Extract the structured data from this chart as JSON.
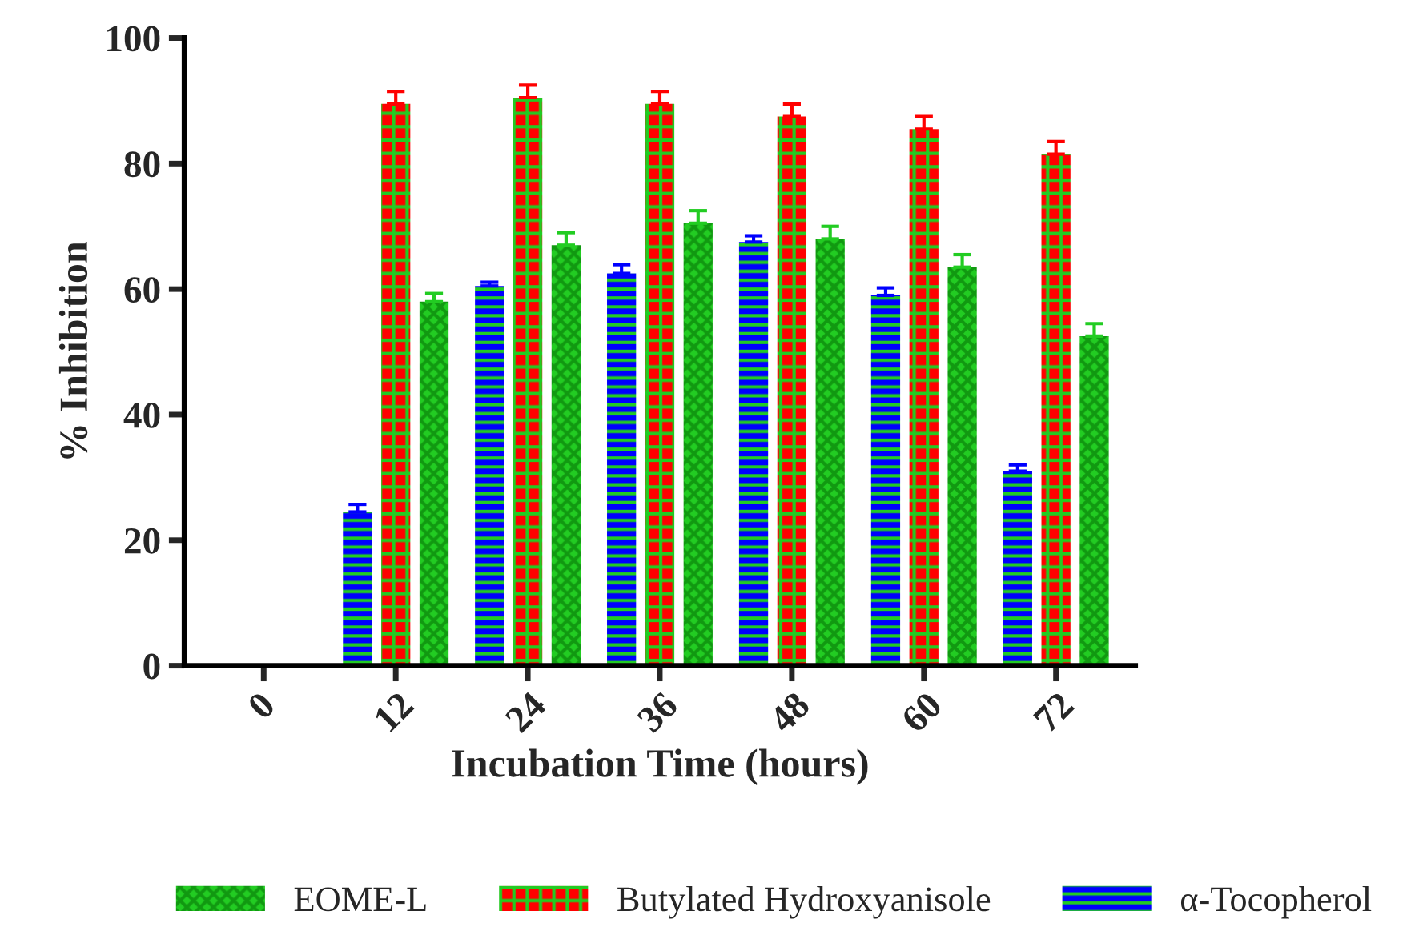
{
  "chart_data": {
    "type": "bar",
    "xlabel": "Incubation Time (hours)",
    "ylabel": "% Inhibition",
    "categories": [
      "0",
      "12",
      "24",
      "36",
      "48",
      "60",
      "72"
    ],
    "ylim": [
      0,
      100
    ],
    "yticks": [
      0,
      20,
      40,
      60,
      80,
      100
    ],
    "legend": "bottom",
    "grid": false,
    "series": [
      {
        "name": "α-Tocopherol",
        "color": "#0000ff",
        "values": [
          null,
          24.5,
          60.5,
          62.5,
          67.5,
          59,
          31
        ],
        "errors": [
          null,
          1.2,
          0.6,
          1.4,
          1,
          1.2,
          1
        ]
      },
      {
        "name": "Butylated Hydroxyanisole",
        "color": "#ff0000",
        "values": [
          null,
          89.5,
          90.5,
          89.5,
          87.5,
          85.5,
          81.5
        ],
        "errors": [
          null,
          2,
          2,
          2,
          2,
          2,
          2
        ]
      },
      {
        "name": "EOME-L",
        "color": "#22cc22",
        "values": [
          null,
          58,
          67,
          70.5,
          68,
          63.5,
          52.5
        ],
        "errors": [
          null,
          1.3,
          2,
          2,
          2,
          2,
          2
        ]
      }
    ]
  }
}
